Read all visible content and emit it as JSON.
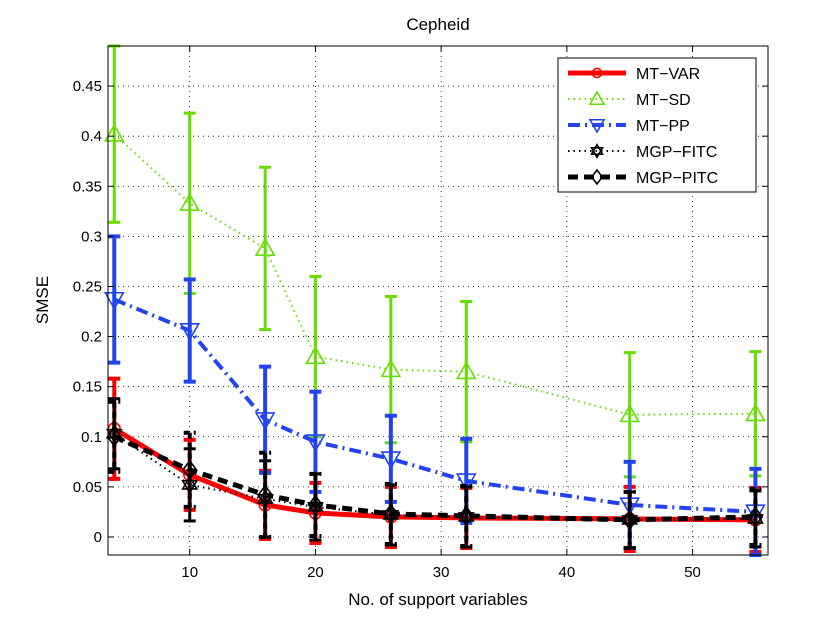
{
  "chart_data": {
    "type": "line",
    "title": "Cepheid",
    "xlabel": "No. of support variables",
    "ylabel": "SMSE",
    "xlim": [
      3.5,
      56
    ],
    "ylim": [
      -0.018,
      0.49
    ],
    "xticks": [
      10,
      20,
      30,
      40,
      50
    ],
    "yticks": [
      0,
      0.05,
      0.1,
      0.15,
      0.2,
      0.25,
      0.3,
      0.35,
      0.4,
      0.45
    ],
    "xtick_labels": [
      "10",
      "20",
      "30",
      "40",
      "50"
    ],
    "ytick_labels": [
      "0",
      "0.05",
      "0.1",
      "0.15",
      "0.2",
      "0.25",
      "0.3",
      "0.35",
      "0.4",
      "0.45"
    ],
    "grid": true,
    "legend_position": "top-right",
    "x": [
      4,
      10,
      16,
      20,
      26,
      32,
      45,
      55
    ],
    "series": [
      {
        "name": "MT−VAR",
        "color": "#ff0000",
        "linestyle": "solid",
        "marker": "circle",
        "values": [
          0.108,
          0.062,
          0.032,
          0.024,
          0.02,
          0.019,
          0.018,
          0.017
        ],
        "errors": [
          0.05,
          0.035,
          0.034,
          0.03,
          0.03,
          0.03,
          0.032,
          0.032
        ]
      },
      {
        "name": "MT−SD",
        "color": "#66dd00",
        "linestyle": "dotted",
        "marker": "triangle-up",
        "values": [
          0.402,
          0.333,
          0.288,
          0.18,
          0.167,
          0.165,
          0.122,
          0.123
        ],
        "errors": [
          0.088,
          0.09,
          0.081,
          0.08,
          0.073,
          0.07,
          0.062,
          0.062
        ]
      },
      {
        "name": "MT−PP",
        "color": "#2244ee",
        "linestyle": "dashdot",
        "marker": "triangle-down",
        "values": [
          0.237,
          0.206,
          0.117,
          0.095,
          0.078,
          0.056,
          0.032,
          0.025
        ],
        "errors": [
          0.063,
          0.051,
          0.053,
          0.05,
          0.043,
          0.042,
          0.043,
          0.043
        ]
      },
      {
        "name": "MGP−FITC",
        "color": "#000000",
        "linestyle": "dotted",
        "marker": "hexagram",
        "values": [
          0.103,
          0.052,
          0.038,
          0.03,
          0.022,
          0.02,
          0.017,
          0.018
        ],
        "errors": [
          0.035,
          0.036,
          0.038,
          0.033,
          0.03,
          0.03,
          0.028,
          0.028
        ]
      },
      {
        "name": "MGP−PITC",
        "color": "#000000",
        "linestyle": "dashed",
        "marker": "diamond",
        "values": [
          0.1,
          0.067,
          0.042,
          0.032,
          0.023,
          0.021,
          0.017,
          0.02
        ],
        "errors": [
          0.035,
          0.037,
          0.042,
          0.031,
          0.03,
          0.03,
          0.028,
          0.028
        ]
      }
    ]
  }
}
